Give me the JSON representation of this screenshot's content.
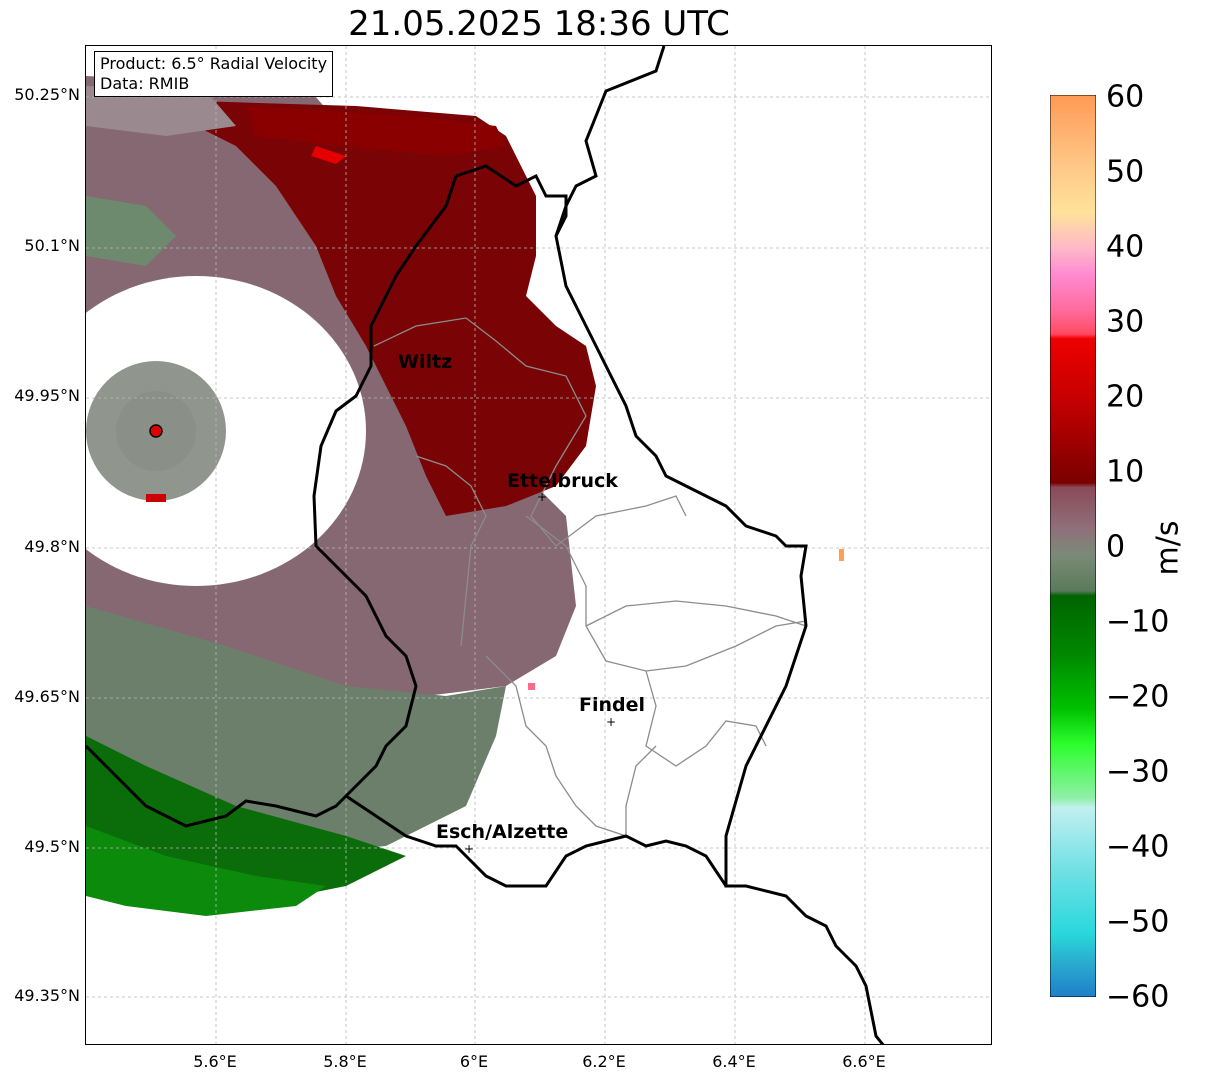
{
  "title": "21.05.2025 18:36 UTC",
  "info": {
    "product": "Product: 6.5° Radial Velocity",
    "data": "Data: RMIB"
  },
  "map": {
    "lat_ticks": [
      "50.25°N",
      "50.1°N",
      "49.95°N",
      "49.8°N",
      "49.65°N",
      "49.5°N",
      "49.35°N"
    ],
    "lon_ticks": [
      "5.6°E",
      "5.8°E",
      "6°E",
      "6.2°E",
      "6.4°E",
      "6.6°E"
    ],
    "cities": [
      {
        "name": "Wiltz"
      },
      {
        "name": "Ettelbruck"
      },
      {
        "name": "Findel"
      },
      {
        "name": "Esch/Alzette"
      }
    ],
    "grid": true
  },
  "colorbar": {
    "label": "m/s",
    "ticks": [
      "60",
      "50",
      "40",
      "30",
      "20",
      "10",
      "0",
      "−10",
      "−20",
      "−30",
      "−40",
      "−50",
      "−60"
    ],
    "range": [
      -60,
      60
    ],
    "colors": {
      "neg_high": "#1f7fc8",
      "cyan": "#2ad8dc",
      "light_cyan": "#b8ecf0",
      "green_light": "#4cff4c",
      "green": "#00b000",
      "dark_green": "#006400",
      "grey_green": "#6d8a6d",
      "grey_mauve": "#8a6f7a",
      "maroon": "#7a0000",
      "red": "#ee0000",
      "pink": "#ff5a78",
      "light_pink": "#ff8ecf",
      "peach": "#ffd8a8",
      "yellow": "#ffe59a",
      "orange": "#ffa050"
    }
  }
}
